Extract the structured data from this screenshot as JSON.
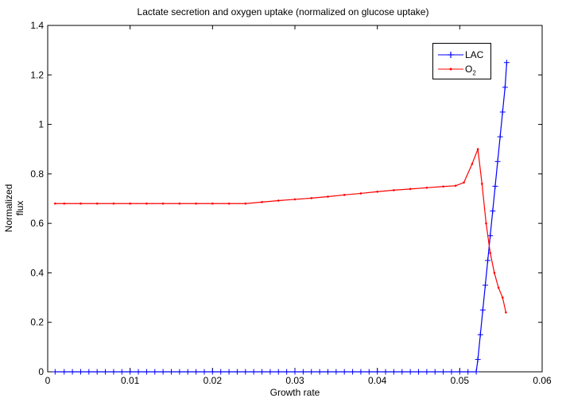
{
  "chart_data": {
    "type": "line",
    "title": "Lactate secretion and oxygen uptake (normalized on glucose uptake)",
    "xlabel": "Growth rate",
    "ylabel": "Normalized flux",
    "xlim": [
      0,
      0.06
    ],
    "ylim": [
      0,
      1.4
    ],
    "xticks": [
      "0",
      "0.01",
      "0.02",
      "0.03",
      "0.04",
      "0.05",
      "0.06"
    ],
    "yticks": [
      "0",
      "0.2",
      "0.4",
      "0.6",
      "0.8",
      "1",
      "1.2",
      "1.4"
    ],
    "grid": false,
    "legend_position": "top-right",
    "series": [
      {
        "name": "LAC",
        "legend_label": "LAC",
        "color": "#0000ff",
        "marker": "plus",
        "points": [
          [
            0.0009,
            0
          ],
          [
            0.002,
            0
          ],
          [
            0.003,
            0
          ],
          [
            0.004,
            0
          ],
          [
            0.005,
            0
          ],
          [
            0.006,
            0
          ],
          [
            0.007,
            0
          ],
          [
            0.008,
            0
          ],
          [
            0.009,
            0
          ],
          [
            0.01,
            0
          ],
          [
            0.011,
            0
          ],
          [
            0.012,
            0
          ],
          [
            0.013,
            0
          ],
          [
            0.014,
            0
          ],
          [
            0.015,
            0
          ],
          [
            0.016,
            0
          ],
          [
            0.017,
            0
          ],
          [
            0.018,
            0
          ],
          [
            0.019,
            0
          ],
          [
            0.02,
            0
          ],
          [
            0.021,
            0
          ],
          [
            0.022,
            0
          ],
          [
            0.023,
            0
          ],
          [
            0.024,
            0
          ],
          [
            0.025,
            0
          ],
          [
            0.026,
            0
          ],
          [
            0.027,
            0
          ],
          [
            0.028,
            0
          ],
          [
            0.029,
            0
          ],
          [
            0.03,
            0
          ],
          [
            0.031,
            0
          ],
          [
            0.032,
            0
          ],
          [
            0.033,
            0
          ],
          [
            0.034,
            0
          ],
          [
            0.035,
            0
          ],
          [
            0.036,
            0
          ],
          [
            0.037,
            0
          ],
          [
            0.038,
            0
          ],
          [
            0.039,
            0
          ],
          [
            0.04,
            0
          ],
          [
            0.041,
            0
          ],
          [
            0.042,
            0
          ],
          [
            0.043,
            0
          ],
          [
            0.044,
            0
          ],
          [
            0.045,
            0
          ],
          [
            0.046,
            0
          ],
          [
            0.047,
            0
          ],
          [
            0.048,
            0
          ],
          [
            0.049,
            0
          ],
          [
            0.05,
            0
          ],
          [
            0.051,
            0
          ],
          [
            0.052,
            0
          ],
          [
            0.0522,
            0.05
          ],
          [
            0.0525,
            0.15
          ],
          [
            0.0528,
            0.25
          ],
          [
            0.0531,
            0.35
          ],
          [
            0.0534,
            0.45
          ],
          [
            0.0537,
            0.55
          ],
          [
            0.054,
            0.65
          ],
          [
            0.0543,
            0.75
          ],
          [
            0.0546,
            0.85
          ],
          [
            0.0549,
            0.95
          ],
          [
            0.0552,
            1.05
          ],
          [
            0.0555,
            1.15
          ],
          [
            0.0557,
            1.25
          ]
        ]
      },
      {
        "name": "O2",
        "legend_label": "O",
        "legend_sub": "2",
        "color": "#ff0000",
        "marker": "dot",
        "points": [
          [
            0.0009,
            0.68
          ],
          [
            0.002,
            0.68
          ],
          [
            0.004,
            0.68
          ],
          [
            0.006,
            0.68
          ],
          [
            0.008,
            0.68
          ],
          [
            0.01,
            0.68
          ],
          [
            0.012,
            0.68
          ],
          [
            0.014,
            0.68
          ],
          [
            0.016,
            0.68
          ],
          [
            0.018,
            0.68
          ],
          [
            0.02,
            0.68
          ],
          [
            0.022,
            0.68
          ],
          [
            0.024,
            0.68
          ],
          [
            0.026,
            0.686
          ],
          [
            0.028,
            0.692
          ],
          [
            0.03,
            0.697
          ],
          [
            0.032,
            0.702
          ],
          [
            0.034,
            0.708
          ],
          [
            0.036,
            0.715
          ],
          [
            0.038,
            0.721
          ],
          [
            0.04,
            0.728
          ],
          [
            0.042,
            0.734
          ],
          [
            0.044,
            0.739
          ],
          [
            0.046,
            0.744
          ],
          [
            0.048,
            0.749
          ],
          [
            0.0495,
            0.752
          ],
          [
            0.0505,
            0.765
          ],
          [
            0.0515,
            0.84
          ],
          [
            0.0522,
            0.9
          ],
          [
            0.0527,
            0.76
          ],
          [
            0.0532,
            0.6
          ],
          [
            0.0537,
            0.48
          ],
          [
            0.0542,
            0.4
          ],
          [
            0.0547,
            0.34
          ],
          [
            0.0552,
            0.3
          ],
          [
            0.0556,
            0.24
          ]
        ]
      }
    ]
  }
}
